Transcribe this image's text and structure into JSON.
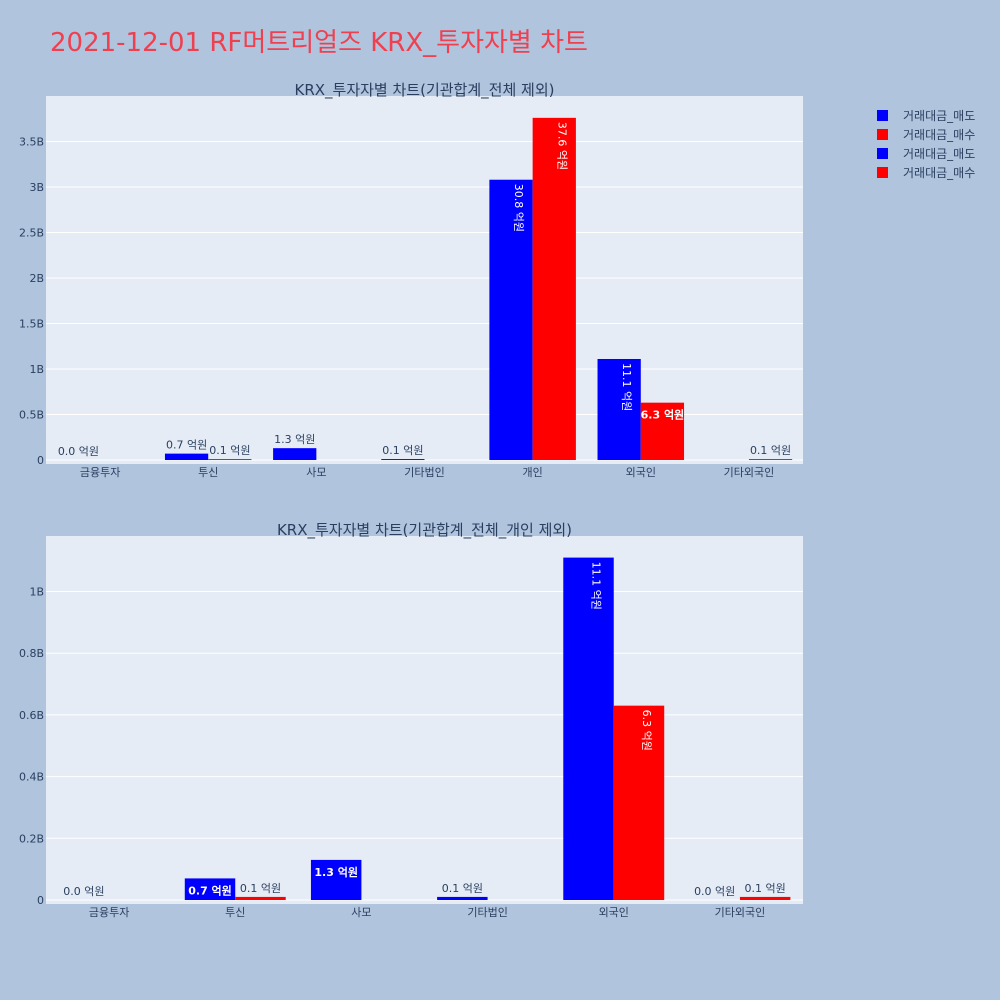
{
  "title": "2021-12-01 RF머트리얼즈 KRX_투자자별 차트",
  "legend": [
    {
      "label": "거래대금_매도",
      "color": "#0000ff"
    },
    {
      "label": "거래대금_매수",
      "color": "#ff0000"
    },
    {
      "label": "거래대금_매도",
      "color": "#0000ff"
    },
    {
      "label": "거래대금_매수",
      "color": "#ff0000"
    }
  ],
  "chart_data": [
    {
      "type": "bar",
      "title": "KRX_투자자별 차트(기관합계_전체 제외)",
      "categories": [
        "금융투자",
        "투신",
        "사모",
        "기타법인",
        "개인",
        "외국인",
        "기타외국인"
      ],
      "series": [
        {
          "name": "거래대금_매도",
          "color": "#0000ff",
          "values": [
            0.0,
            70000000,
            130000000,
            10000000,
            3080000000,
            1110000000,
            0
          ],
          "labels": [
            "0.0 억원",
            "0.7 억원",
            "1.3 억원",
            "0.1 억원",
            "30.8 억원",
            "11.1 억원",
            ""
          ]
        },
        {
          "name": "거래대금_매수",
          "color": "#ff0000",
          "values": [
            0,
            10000000,
            0,
            0,
            3760000000,
            630000000,
            10000000
          ],
          "labels": [
            "",
            "0.1 억원",
            "",
            "",
            "37.6 억원",
            "6.3 억원",
            "0.1 억원"
          ]
        }
      ],
      "yticks": [
        0,
        500000000,
        1000000000,
        1500000000,
        2000000000,
        2500000000,
        3000000000,
        3500000000
      ],
      "ytick_labels": [
        "0",
        "0.5B",
        "1B",
        "1.5B",
        "2B",
        "2.5B",
        "3B",
        "3.5B"
      ],
      "ylim": [
        0,
        4000000000
      ]
    },
    {
      "type": "bar",
      "title": "KRX_투자자별 차트(기관합계_전체_개인 제외)",
      "categories": [
        "금융투자",
        "투신",
        "사모",
        "기타법인",
        "외국인",
        "기타외국인"
      ],
      "series": [
        {
          "name": "거래대금_매도",
          "color": "#0000ff",
          "values": [
            0.0,
            70000000,
            130000000,
            10000000,
            1110000000,
            0.0
          ],
          "labels": [
            "0.0 억원",
            "0.7 억원",
            "1.3 억원",
            "0.1 억원",
            "11.1 억원",
            "0.0 억원"
          ]
        },
        {
          "name": "거래대금_매수",
          "color": "#ff0000",
          "values": [
            0,
            10000000,
            0,
            0,
            630000000,
            10000000
          ],
          "labels": [
            "",
            "0.1 억원",
            "",
            "",
            "6.3 억원",
            "0.1 억원"
          ]
        }
      ],
      "yticks": [
        0,
        200000000,
        400000000,
        600000000,
        800000000,
        1000000000
      ],
      "ytick_labels": [
        "0",
        "0.2B",
        "0.4B",
        "0.6B",
        "0.8B",
        "1B"
      ],
      "ylim": [
        0,
        1180000000
      ]
    }
  ]
}
